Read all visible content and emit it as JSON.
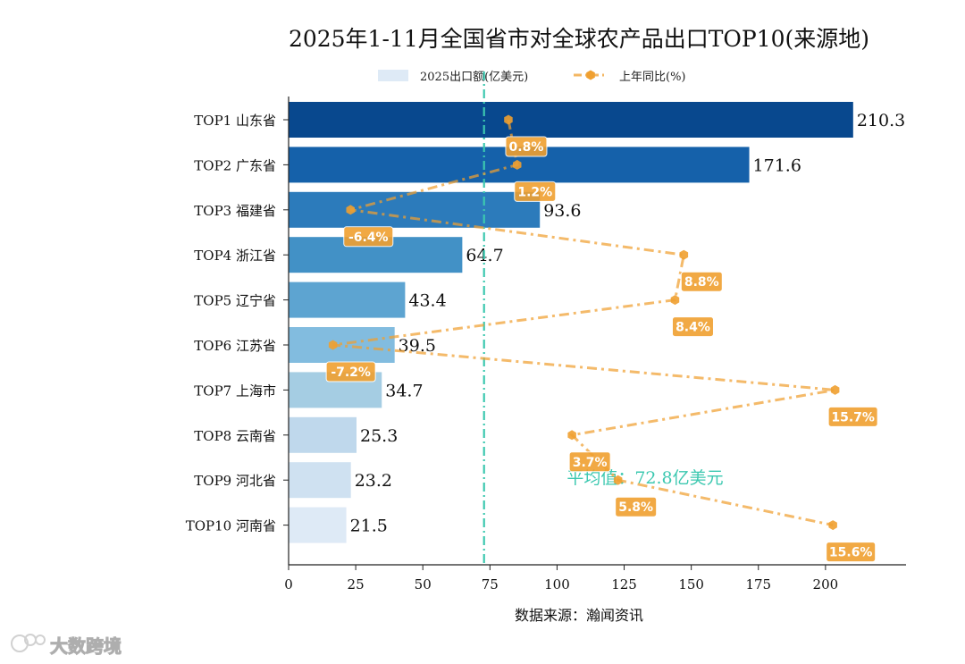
{
  "chart_data": {
    "type": "bar",
    "orientation": "horizontal",
    "title": "2025年1-11月全国省市对全球农产品出口TOP10(来源地)",
    "xlabel": "数据来源：瀚闻资讯",
    "xlim": [
      0,
      230
    ],
    "xticks": [
      "0",
      "25",
      "50",
      "75",
      "100",
      "125",
      "150",
      "175",
      "200"
    ],
    "categories": [
      "TOP1 山东省",
      "TOP2 广东省",
      "TOP3 福建省",
      "TOP4 浙江省",
      "TOP5 辽宁省",
      "TOP6 江苏省",
      "TOP7 上海市",
      "TOP8 云南省",
      "TOP9 河北省",
      "TOP10 河南省"
    ],
    "series": [
      {
        "name": "2025出口额(亿美元)",
        "values": [
          210.3,
          171.6,
          93.6,
          64.7,
          43.4,
          39.5,
          34.7,
          25.3,
          23.2,
          21.5
        ],
        "labels": [
          "210.3",
          "171.6",
          "93.6",
          "64.7",
          "43.4",
          "39.5",
          "34.7",
          "25.3",
          "23.2",
          "21.5"
        ],
        "colors": [
          "#08488e",
          "#1561aa",
          "#2c7bbb",
          "#4291c6",
          "#5da4d1",
          "#82bcdf",
          "#a5cde3",
          "#bfd8ec",
          "#cfe1f1",
          "#deeaf6"
        ]
      },
      {
        "name": "上年同比(%)",
        "values": [
          0.8,
          1.2,
          -6.4,
          8.8,
          8.4,
          -7.2,
          15.7,
          3.7,
          5.8,
          15.6
        ],
        "labels": [
          "0.8%",
          "1.2%",
          "-6.4%",
          "8.8%",
          "8.4%",
          "-7.2%",
          "15.7%",
          "3.7%",
          "5.8%",
          "15.6%"
        ],
        "range": [
          -8,
          16
        ],
        "color": "#f0a030"
      }
    ],
    "average": {
      "value": 72.8,
      "label": "平均值：72.8亿美元",
      "color": "#3cc8b0"
    },
    "legend_position": "top-center",
    "grid": false
  },
  "watermark": "大数跨境"
}
